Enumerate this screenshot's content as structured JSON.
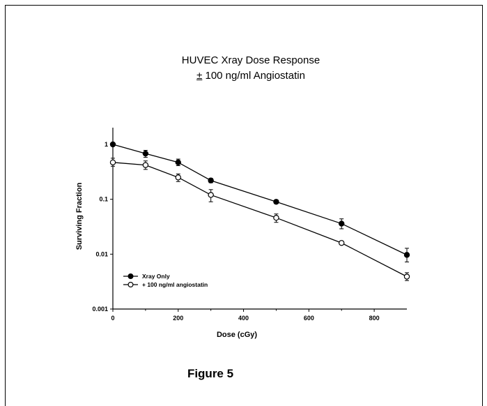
{
  "chart_data": {
    "type": "line",
    "title": "HUVEC Xray Dose Response",
    "subtitle_symbol": "±",
    "subtitle_text": " 100 ng/ml Angiostatin",
    "xlabel": "Dose (cGy)",
    "ylabel": "Surviving Fraction",
    "xlim": [
      0,
      900
    ],
    "ylim": [
      0.001,
      1
    ],
    "yscale": "log",
    "x_ticks": [
      "0",
      "200",
      "400",
      "600",
      "800"
    ],
    "x_tick_values": [
      0,
      200,
      400,
      600,
      800
    ],
    "y_ticks": [
      "0.001",
      "0.01",
      "0.1",
      "1"
    ],
    "y_tick_values": [
      0.001,
      0.01,
      0.1,
      1
    ],
    "grid": false,
    "legend_position": "lower-left",
    "series": [
      {
        "name": "Xray Only",
        "marker": "filled-circle",
        "color": "#000000",
        "x": [
          0,
          100,
          200,
          300,
          500,
          700,
          900
        ],
        "y": [
          1.0,
          0.68,
          0.47,
          0.22,
          0.09,
          0.036,
          0.0097
        ],
        "err_low": [
          1.0,
          0.58,
          0.41,
          0.2,
          0.083,
          0.029,
          0.0072
        ],
        "err_high": [
          1.0,
          0.78,
          0.54,
          0.24,
          0.097,
          0.044,
          0.0128
        ]
      },
      {
        "name": "+ 100 ng/ml angiostatin",
        "marker": "open-circle",
        "color": "#000000",
        "x": [
          0,
          100,
          200,
          300,
          500,
          700,
          900
        ],
        "y": [
          0.47,
          0.42,
          0.25,
          0.12,
          0.046,
          0.016,
          0.0039
        ],
        "err_low": [
          0.4,
          0.35,
          0.21,
          0.09,
          0.038,
          0.016,
          0.0033
        ],
        "err_high": [
          0.56,
          0.5,
          0.29,
          0.15,
          0.054,
          0.016,
          0.0046
        ]
      }
    ]
  },
  "figure_label": "Figure 5"
}
